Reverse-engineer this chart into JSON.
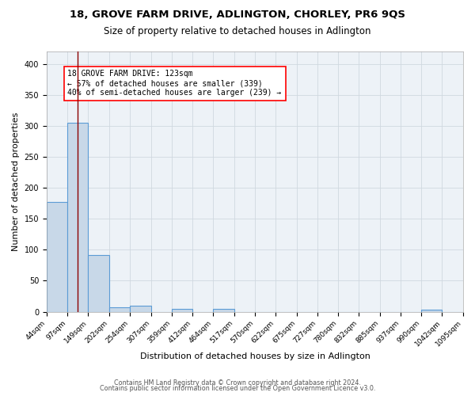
{
  "title": "18, GROVE FARM DRIVE, ADLINGTON, CHORLEY, PR6 9QS",
  "subtitle": "Size of property relative to detached houses in Adlington",
  "xlabel": "Distribution of detached houses by size in Adlington",
  "ylabel": "Number of detached properties",
  "bin_edges": [
    44,
    97,
    149,
    202,
    254,
    307,
    359,
    412,
    464,
    517,
    570,
    622,
    675,
    727,
    780,
    832,
    885,
    937,
    990,
    1042,
    1095
  ],
  "bin_counts": [
    177,
    305,
    92,
    7,
    10,
    0,
    4,
    0,
    5,
    0,
    0,
    0,
    0,
    0,
    0,
    0,
    0,
    0,
    3,
    0
  ],
  "bar_color": "#c8d8e8",
  "bar_edge_color": "#5b9bd5",
  "bar_linewidth": 0.8,
  "red_line_x": 123,
  "annotation_text": "18 GROVE FARM DRIVE: 123sqm\n← 57% of detached houses are smaller (339)\n40% of semi-detached houses are larger (239) →",
  "ylim": [
    0,
    420
  ],
  "grid_color": "#d0d8e0",
  "background_color": "#edf2f7",
  "footer_line1": "Contains HM Land Registry data © Crown copyright and database right 2024.",
  "footer_line2": "Contains public sector information licensed under the Open Government Licence v3.0.",
  "title_fontsize": 9.5,
  "subtitle_fontsize": 8.5,
  "axis_fontsize": 8,
  "tick_fontsize": 6.5,
  "annotation_fontsize": 7,
  "footer_fontsize": 5.8
}
